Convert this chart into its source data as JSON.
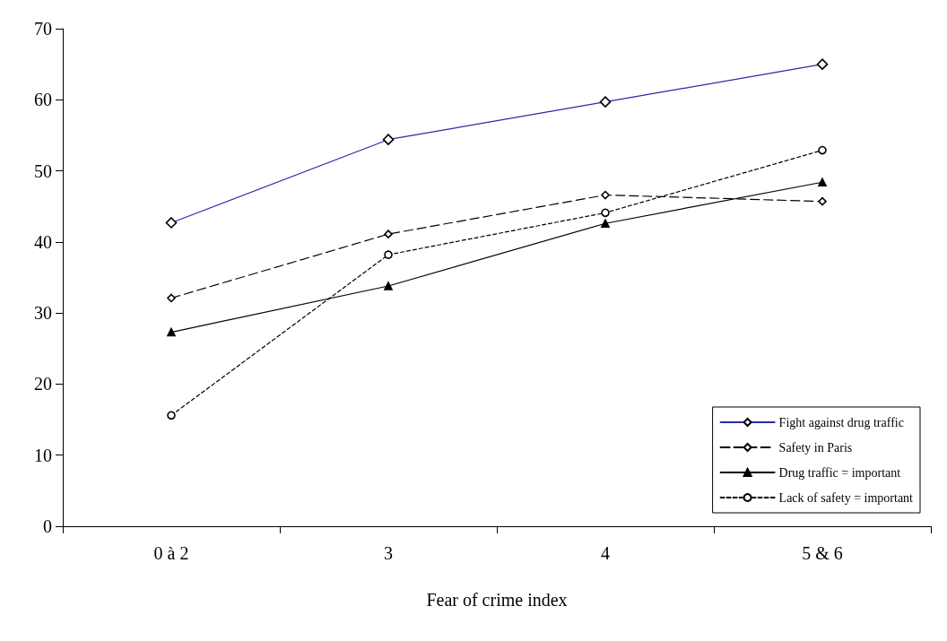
{
  "chart_data": {
    "type": "line",
    "xlabel": "Fear of crime index",
    "categories": [
      "0 à 2",
      "3",
      "4",
      "5 & 6"
    ],
    "series": [
      {
        "name": "Fight against drug traffic",
        "color": "#2a2aa8",
        "marker": "diamond",
        "line_style": "solid",
        "values": [
          42.7,
          54.4,
          59.7,
          65.0
        ]
      },
      {
        "name": "Safety in Paris",
        "color": "#000000",
        "marker": "diamond",
        "line_style": "dashed",
        "values": [
          32.1,
          41.1,
          46.6,
          45.7
        ]
      },
      {
        "name": "Drug traffic = important",
        "color": "#000000",
        "marker": "triangle",
        "line_style": "solid",
        "values": [
          27.3,
          33.8,
          42.6,
          48.4
        ]
      },
      {
        "name": "Lack of safety = important",
        "color": "#000000",
        "marker": "circle",
        "line_style": "dotted",
        "values": [
          15.6,
          38.2,
          44.1,
          52.9
        ]
      }
    ],
    "ylim": [
      0,
      70
    ],
    "yticks": [
      0,
      10,
      20,
      30,
      40,
      50,
      60,
      70
    ],
    "grid": false,
    "legend": "bottom right"
  }
}
